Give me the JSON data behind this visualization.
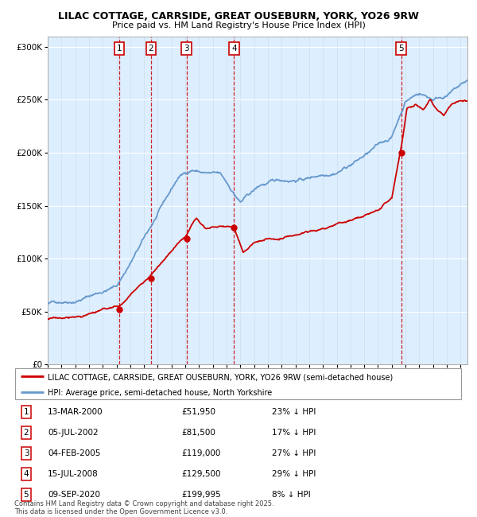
{
  "title": "LILAC COTTAGE, CARRSIDE, GREAT OUSEBURN, YORK, YO26 9RW",
  "subtitle": "Price paid vs. HM Land Registry's House Price Index (HPI)",
  "background_color": "#ffffff",
  "plot_bg_color": "#ddeeff",
  "grid_color": "#ffffff",
  "ylim": [
    0,
    310000
  ],
  "yticks": [
    0,
    50000,
    100000,
    150000,
    200000,
    250000,
    300000
  ],
  "ytick_labels": [
    "£0",
    "£50K",
    "£100K",
    "£150K",
    "£200K",
    "£250K",
    "£300K"
  ],
  "sale_dates_num": [
    2000.2,
    2002.51,
    2005.09,
    2008.54,
    2020.69
  ],
  "sale_prices": [
    51950,
    81500,
    119000,
    129500,
    199995
  ],
  "sale_labels": [
    "1",
    "2",
    "3",
    "4",
    "5"
  ],
  "sale_date_strs": [
    "13-MAR-2000",
    "05-JUL-2002",
    "04-FEB-2005",
    "15-JUL-2008",
    "09-SEP-2020"
  ],
  "sale_price_strs": [
    "£51,950",
    "£81,500",
    "£119,000",
    "£129,500",
    "£199,995"
  ],
  "sale_hpi_strs": [
    "23% ↓ HPI",
    "17% ↓ HPI",
    "27% ↓ HPI",
    "29% ↓ HPI",
    "8% ↓ HPI"
  ],
  "red_color": "#cc0000",
  "blue_color": "#6699cc",
  "legend_red_label": "LILAC COTTAGE, CARRSIDE, GREAT OUSEBURN, YORK, YO26 9RW (semi-detached house)",
  "legend_blue_label": "HPI: Average price, semi-detached house, North Yorkshire",
  "footnote": "Contains HM Land Registry data © Crown copyright and database right 2025.\nThis data is licensed under the Open Government Licence v3.0.",
  "xmin": 1995,
  "xmax": 2025.5
}
